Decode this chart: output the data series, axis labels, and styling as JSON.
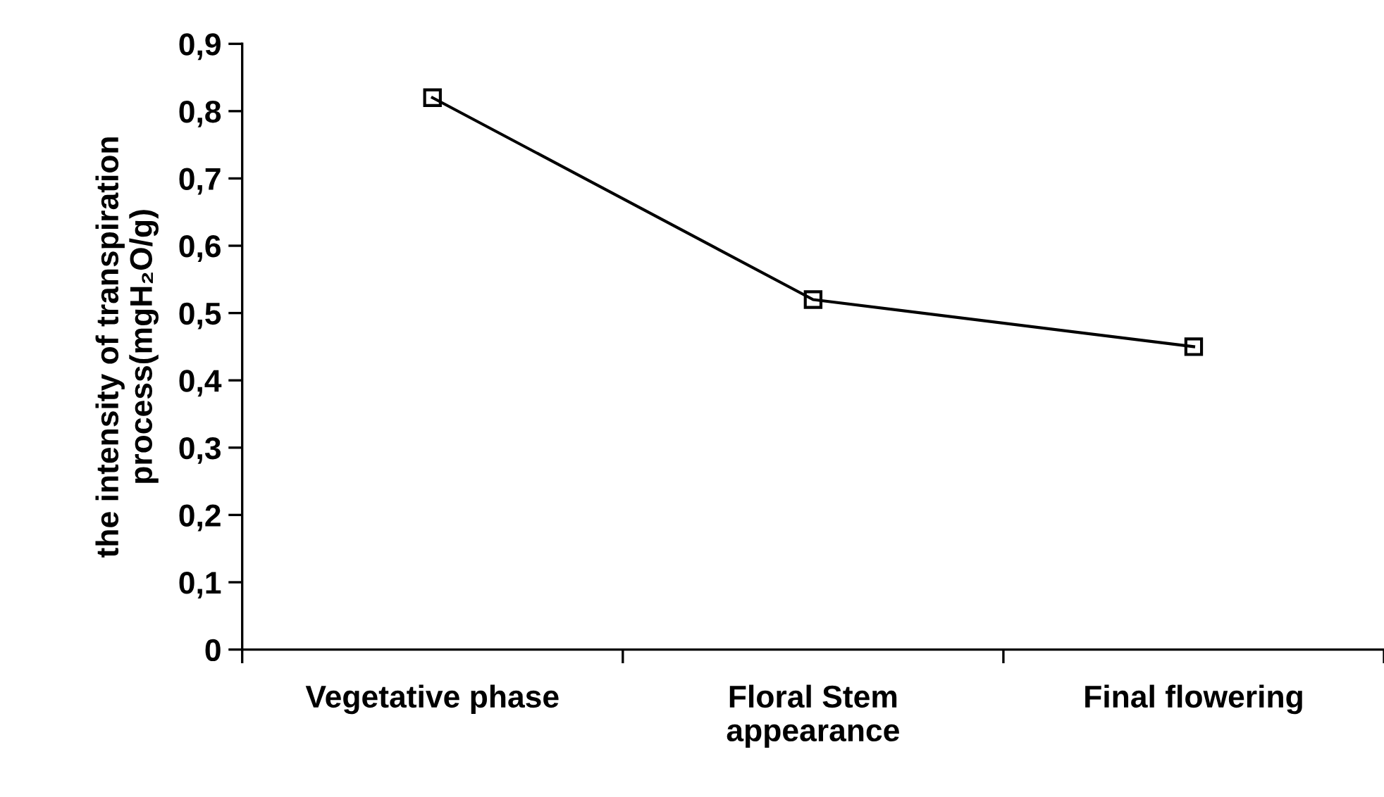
{
  "chart_data": {
    "type": "line",
    "ylabel": "the intensity of transpiration\nprocess(mgH₂O/g)",
    "categories": [
      "Vegetative phase",
      "Floral Stem\nappearance",
      "Final flowering"
    ],
    "series": [
      {
        "color": "#000000",
        "values": [
          0.82,
          0.52,
          0.45
        ]
      }
    ],
    "marker": "square",
    "line_style": "solid",
    "grid": false,
    "ylim": [
      0,
      0.9
    ],
    "yticks": [
      0,
      {
        "value": 0.1,
        "label": "0,1"
      },
      {
        "value": 0.2,
        "label": "0,2"
      },
      {
        "value": 0.3,
        "label": "0,3"
      },
      {
        "value": 0.4,
        "label": "0,4"
      },
      {
        "value": 0.5,
        "label": "0,5"
      },
      {
        "value": 0.6,
        "label": "0,6"
      },
      {
        "value": 0.7,
        "label": "0,7"
      },
      {
        "value": 0.8,
        "label": "0,8"
      },
      {
        "value": 0.9,
        "label": "0,9"
      }
    ]
  }
}
